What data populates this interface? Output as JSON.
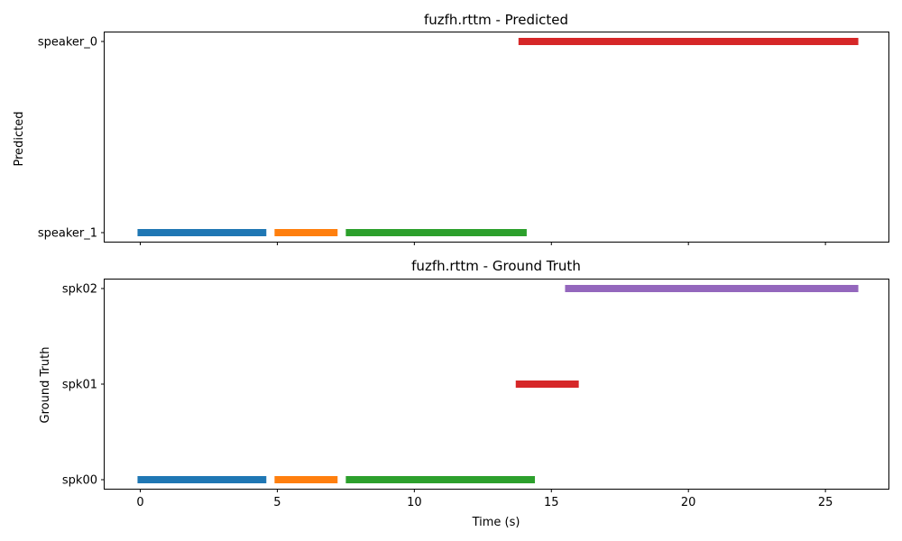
{
  "chart_data": [
    {
      "type": "timeline",
      "title": "fuzfh.rttm - Predicted",
      "xlabel": "",
      "ylabel": "Predicted",
      "xlim": [
        -1.3,
        27.3
      ],
      "xticks": [
        0,
        5,
        10,
        15,
        20,
        25
      ],
      "show_xtick_labels": false,
      "categories": [
        "speaker_1",
        "speaker_0"
      ],
      "segments": [
        {
          "speaker": "speaker_1",
          "start": -0.1,
          "end": 4.6,
          "color": "#1f77b4"
        },
        {
          "speaker": "speaker_1",
          "start": 4.9,
          "end": 7.2,
          "color": "#ff7f0e"
        },
        {
          "speaker": "speaker_1",
          "start": 7.5,
          "end": 14.1,
          "color": "#2ca02c"
        },
        {
          "speaker": "speaker_0",
          "start": 13.8,
          "end": 26.2,
          "color": "#d62728"
        }
      ],
      "grid": false
    },
    {
      "type": "timeline",
      "title": "fuzfh.rttm - Ground Truth",
      "xlabel": "Time (s)",
      "ylabel": "Ground Truth",
      "xlim": [
        -1.3,
        27.3
      ],
      "xticks": [
        0,
        5,
        10,
        15,
        20,
        25
      ],
      "show_xtick_labels": true,
      "categories": [
        "spk00",
        "spk01",
        "spk02"
      ],
      "segments": [
        {
          "speaker": "spk00",
          "start": -0.1,
          "end": 4.6,
          "color": "#1f77b4"
        },
        {
          "speaker": "spk00",
          "start": 4.9,
          "end": 7.2,
          "color": "#ff7f0e"
        },
        {
          "speaker": "spk00",
          "start": 7.5,
          "end": 14.4,
          "color": "#2ca02c"
        },
        {
          "speaker": "spk01",
          "start": 13.7,
          "end": 16.0,
          "color": "#d62728"
        },
        {
          "speaker": "spk02",
          "start": 15.5,
          "end": 26.2,
          "color": "#9467bd"
        }
      ],
      "grid": false
    }
  ]
}
